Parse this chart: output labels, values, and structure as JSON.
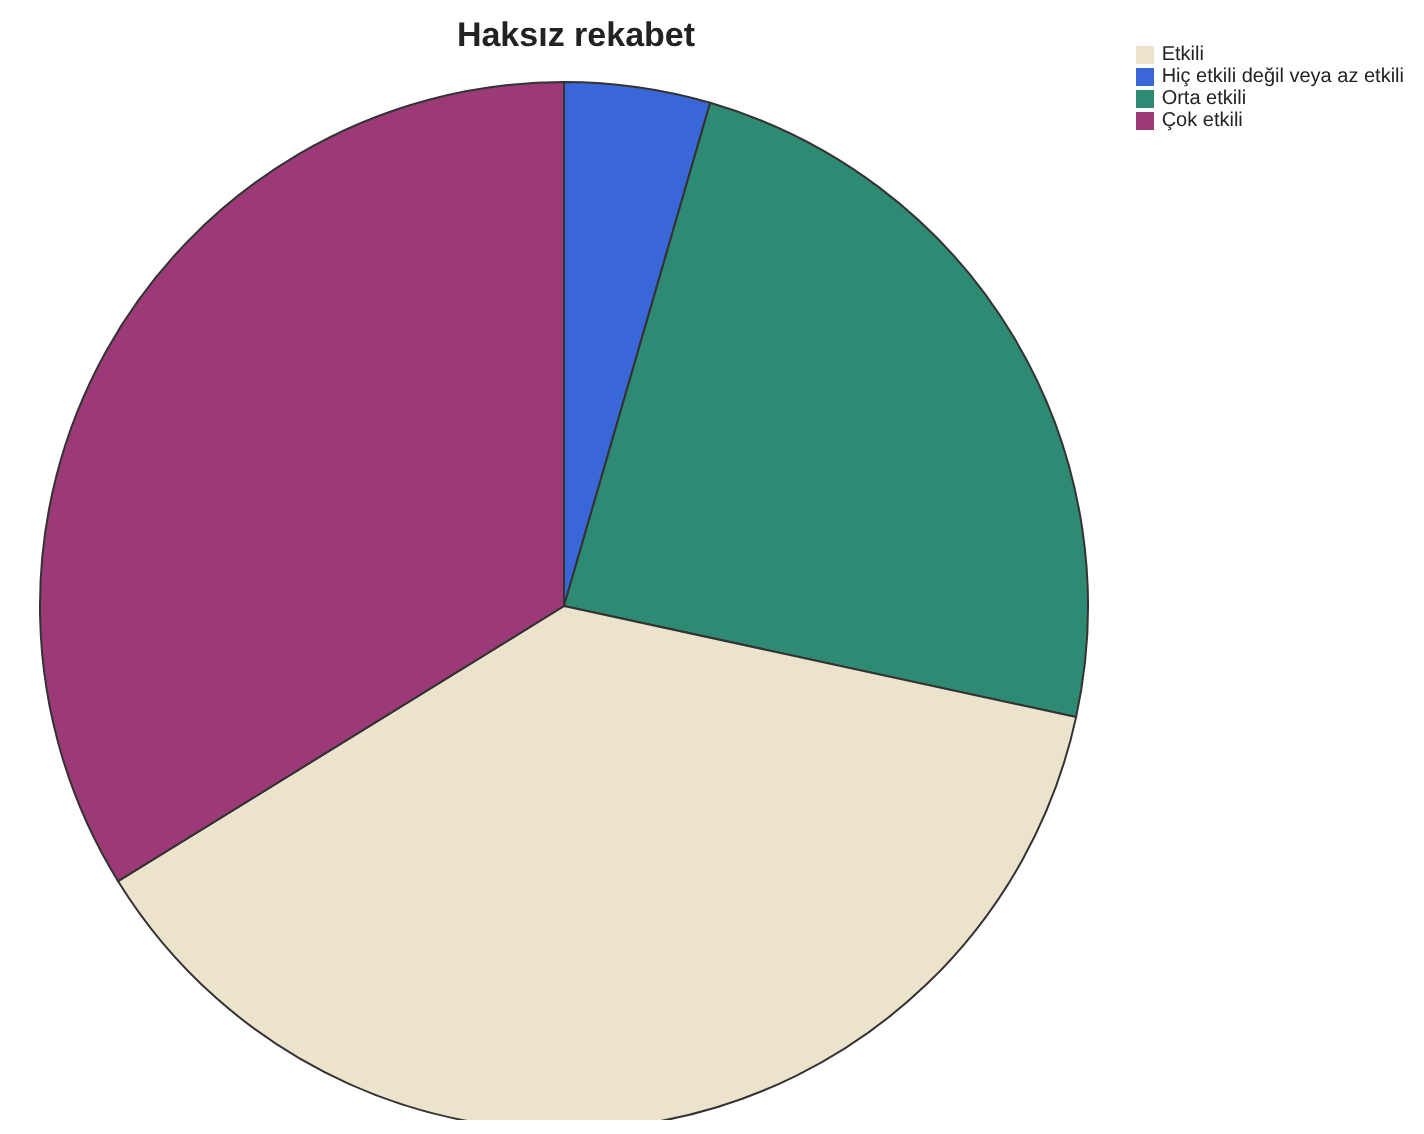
{
  "chart_data": {
    "type": "pie",
    "title": "Haksız rekabet",
    "categories": [
      "Hiç etkili değil veya az etkili",
      "Orta etkili",
      "Etkili",
      "Çok etkili"
    ],
    "values": [
      4.5,
      23.9,
      37.8,
      33.8
    ],
    "colors": [
      "#3a67d8",
      "#2e8a72",
      "#ece3cc",
      "#9c3a78"
    ],
    "legend": "top right"
  }
}
